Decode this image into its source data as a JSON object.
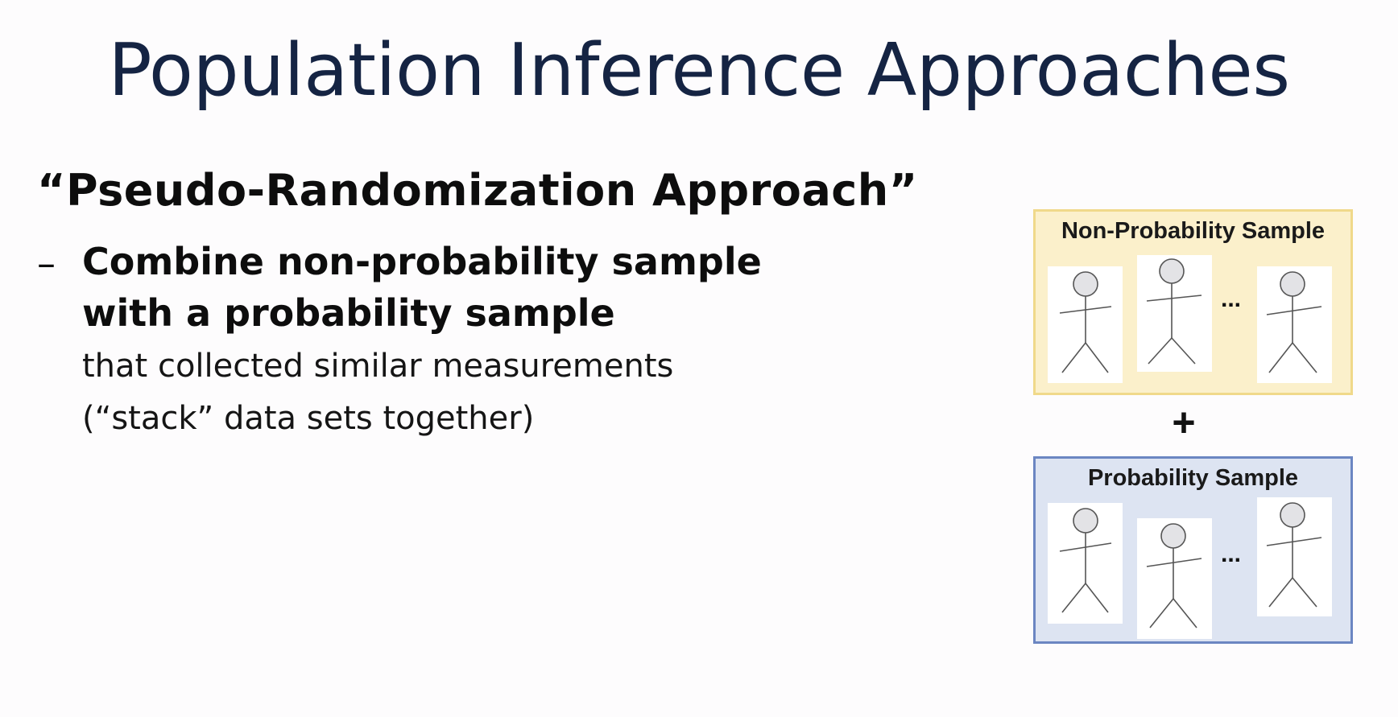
{
  "slide": {
    "title": "Population Inference Approaches"
  },
  "content": {
    "heading": "“Pseudo-Randomization Approach”",
    "bullet_marker": "–",
    "bullet_bold_line1": "Combine non-probability sample",
    "bullet_bold_line2": "with a probability sample",
    "bullet_line3": "that collected similar measurements",
    "bullet_line4": "(“stack” data sets together)"
  },
  "diagram": {
    "nonprob_label": "Non-Probability Sample",
    "prob_label": "Probability Sample",
    "ellipsis": "...",
    "plus": "+",
    "icon": "stick-figure-icon",
    "colors": {
      "nonprob_fill": "#fbf0cb",
      "nonprob_border": "#f0d98a",
      "prob_fill": "#dde4f2",
      "prob_border": "#6b86c2",
      "title": "#152443"
    }
  }
}
